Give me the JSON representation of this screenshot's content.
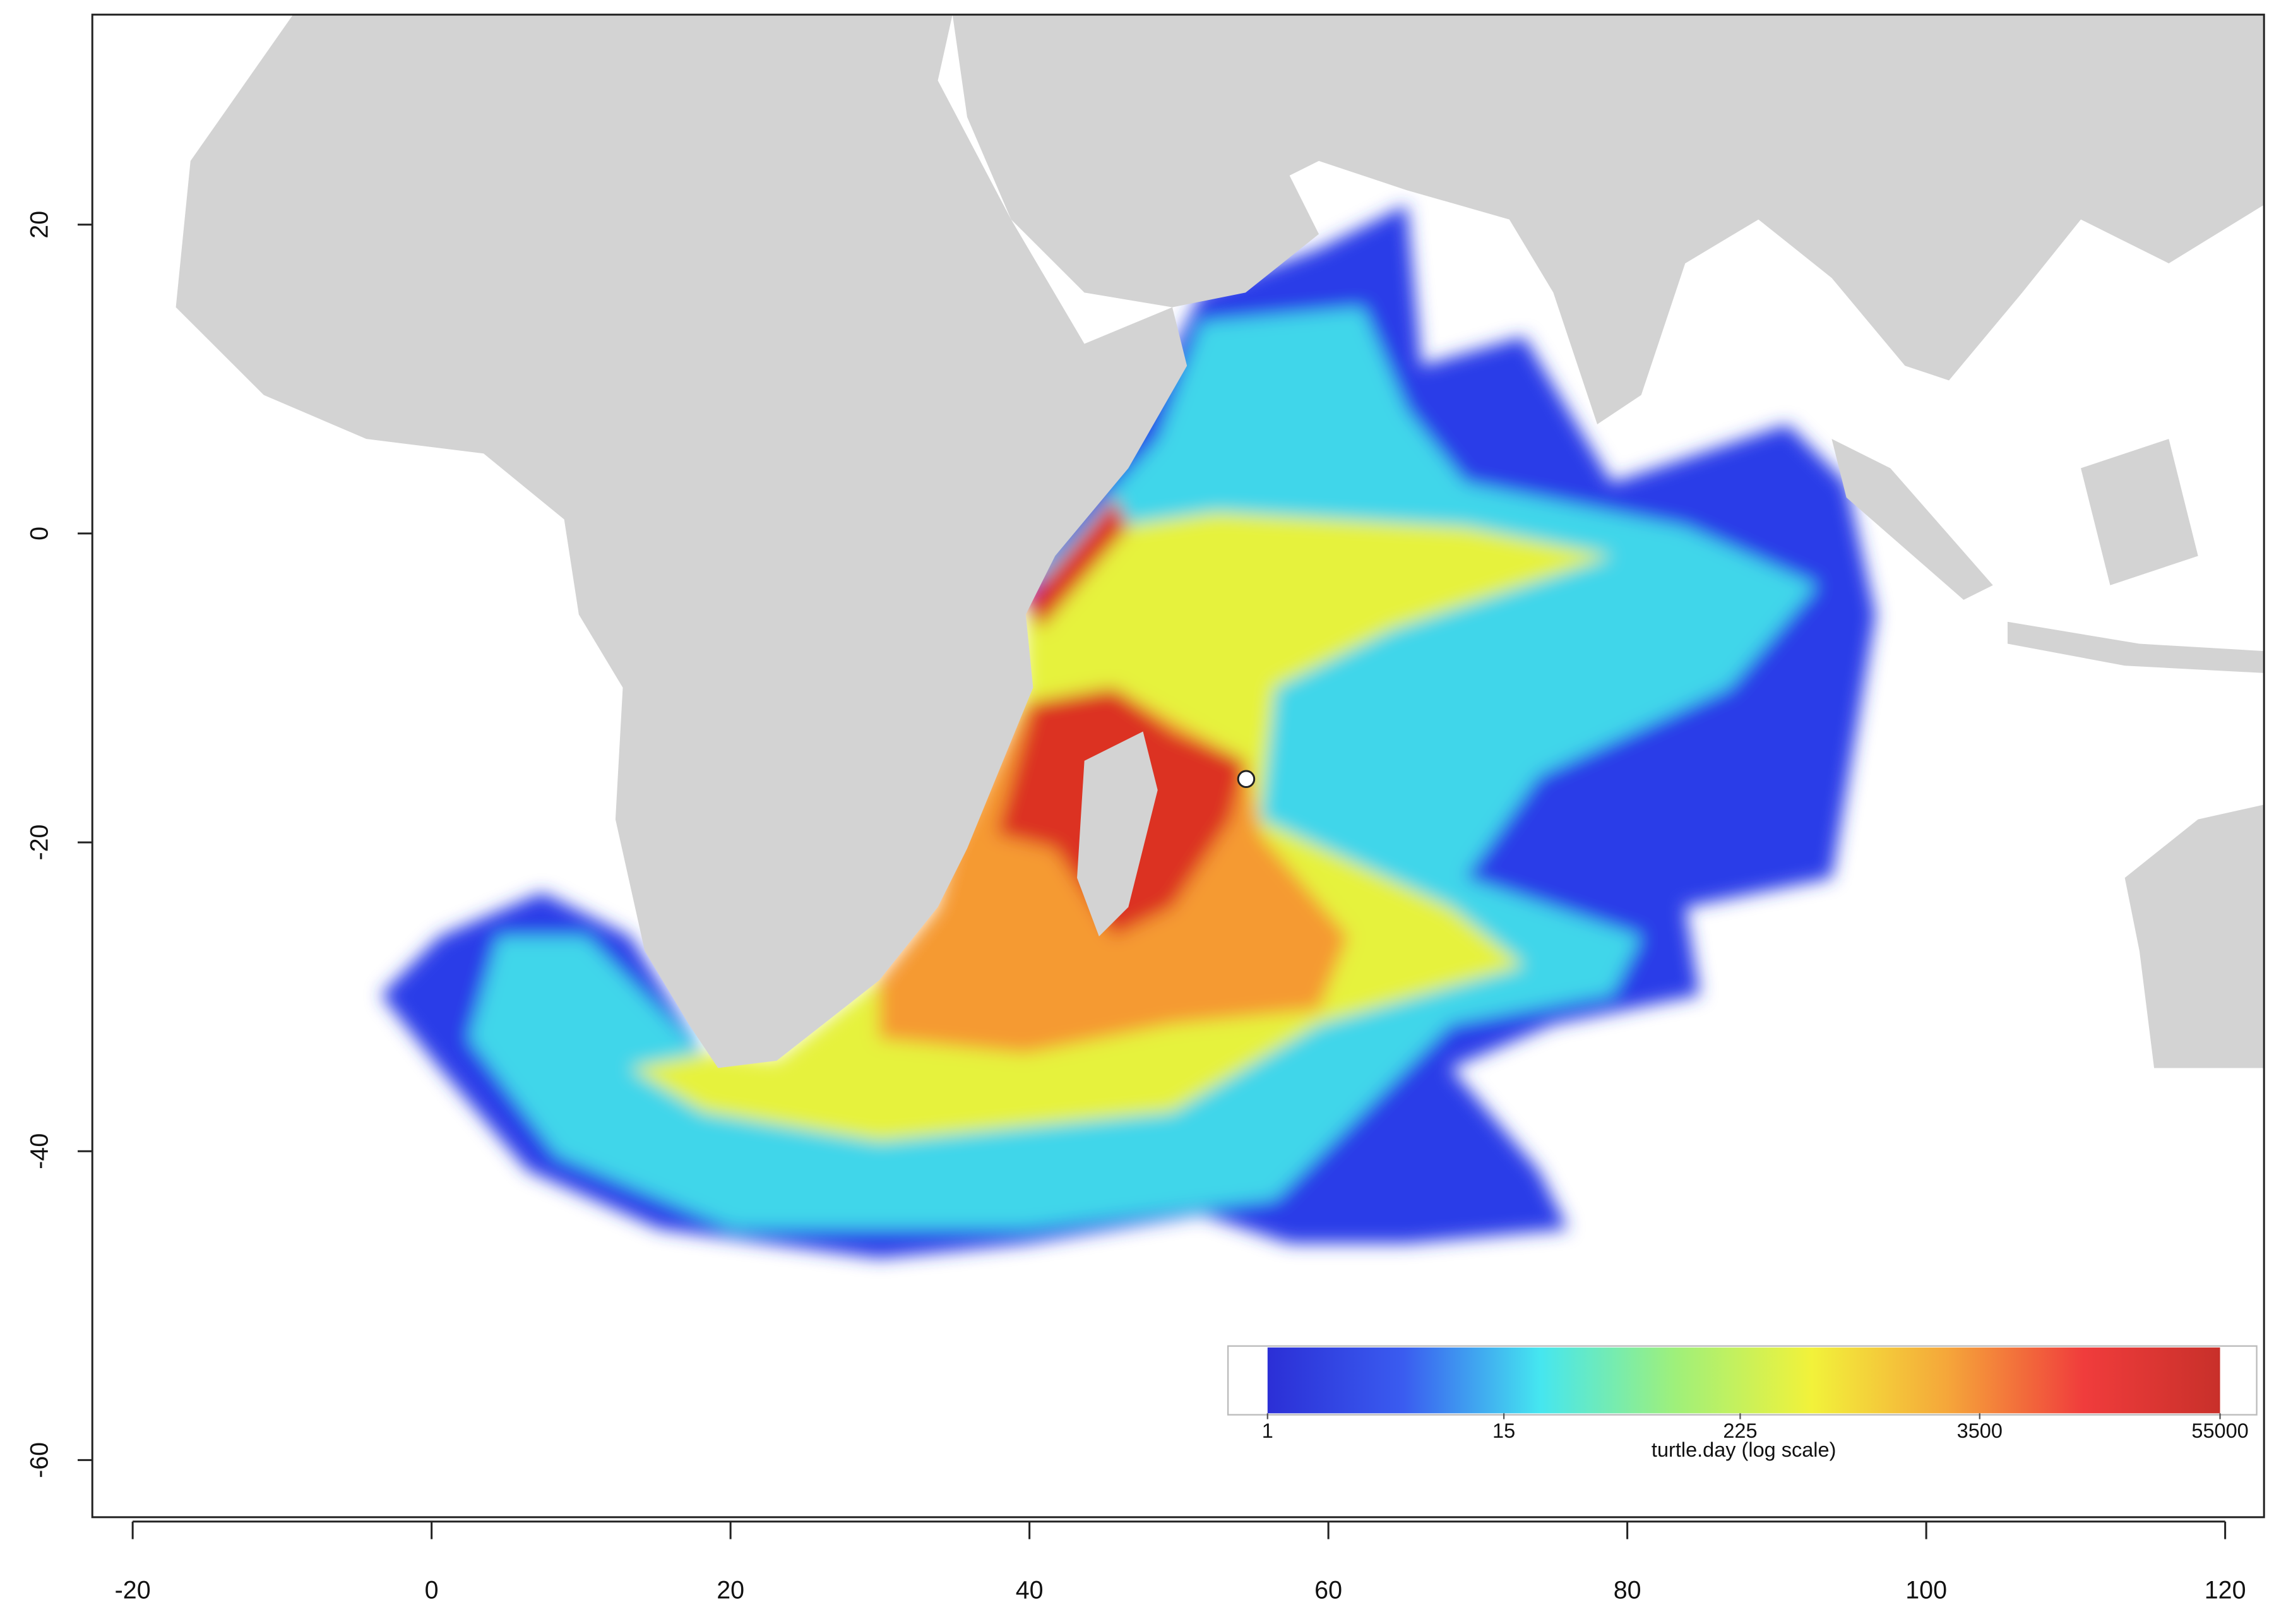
{
  "chart_data": {
    "type": "heatmap-map",
    "xlim": [
      -22.7,
      122.6
    ],
    "ylim": [
      -63.7,
      33.6
    ],
    "xticks": [
      -20,
      0,
      20,
      40,
      60,
      80,
      100,
      120
    ],
    "yticks": [
      20,
      0,
      -20,
      -40,
      -60
    ],
    "marker": {
      "lon": 54.5,
      "lat": -15.9
    },
    "colorbar": {
      "label": "turtle.day (log scale)",
      "lim": [
        1,
        55000
      ],
      "log": true,
      "ticks": [
        1,
        15,
        225,
        3500,
        55000
      ],
      "colors": [
        "#2b2fd6",
        "#3a5cf0",
        "#45e6f0",
        "#9ff07a",
        "#f2f23a",
        "#f5a63a",
        "#f03c3c",
        "#c8302a"
      ]
    }
  }
}
